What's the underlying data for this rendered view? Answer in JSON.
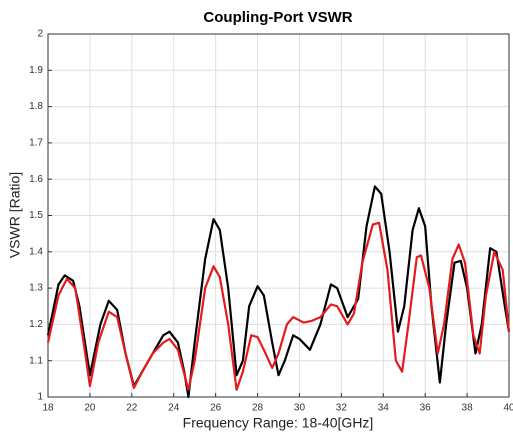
{
  "chart_data": {
    "type": "line",
    "title": "Coupling-Port VSWR",
    "xlabel": "Frequency Range: 18-40[GHz]",
    "ylabel": "VSWR [Ratio]",
    "xlim": [
      18,
      40
    ],
    "xticks": [
      18,
      20,
      22,
      24,
      26,
      28,
      30,
      32,
      34,
      36,
      38,
      40
    ],
    "ylim": [
      1,
      2
    ],
    "yticks": [
      1,
      1.1,
      1.2,
      1.3,
      1.4,
      1.5,
      1.6,
      1.7,
      1.8,
      1.9,
      2
    ],
    "grid": true,
    "series": [
      {
        "color": "#000000",
        "x": [
          18,
          18.5,
          18.8,
          19.2,
          19.5,
          20,
          20.5,
          20.9,
          21.3,
          21.7,
          22.1,
          22.5,
          23,
          23.5,
          23.8,
          24.2,
          24.5,
          24.7,
          25,
          25.5,
          25.9,
          26.2,
          26.6,
          27,
          27.3,
          27.6,
          28,
          28.3,
          28.7,
          29,
          29.3,
          29.7,
          30,
          30.5,
          31,
          31.5,
          31.8,
          32.3,
          32.8,
          33.2,
          33.6,
          33.9,
          34.3,
          34.7,
          35,
          35.4,
          35.7,
          36,
          36.3,
          36.7,
          37,
          37.4,
          37.7,
          38,
          38.4,
          38.7,
          39.1,
          39.4,
          39.8,
          40
        ],
        "values": [
          1.17,
          1.31,
          1.335,
          1.32,
          1.25,
          1.06,
          1.2,
          1.265,
          1.24,
          1.12,
          1.03,
          1.07,
          1.12,
          1.17,
          1.18,
          1.15,
          1.07,
          1.0,
          1.15,
          1.38,
          1.49,
          1.46,
          1.3,
          1.06,
          1.1,
          1.25,
          1.305,
          1.28,
          1.15,
          1.06,
          1.1,
          1.17,
          1.16,
          1.13,
          1.2,
          1.31,
          1.3,
          1.22,
          1.27,
          1.47,
          1.58,
          1.56,
          1.4,
          1.18,
          1.25,
          1.46,
          1.52,
          1.47,
          1.25,
          1.04,
          1.2,
          1.37,
          1.375,
          1.3,
          1.12,
          1.2,
          1.41,
          1.4,
          1.25,
          1.18
        ]
      },
      {
        "color": "#e41a1c",
        "x": [
          18,
          18.5,
          18.9,
          19.3,
          19.7,
          20,
          20.4,
          20.9,
          21.3,
          21.7,
          22.1,
          22.5,
          23,
          23.5,
          23.8,
          24.2,
          24.7,
          25,
          25.5,
          25.9,
          26.2,
          26.6,
          27,
          27.3,
          27.7,
          28,
          28.3,
          28.7,
          29,
          29.4,
          29.7,
          30.2,
          30.6,
          31,
          31.5,
          31.8,
          32.3,
          32.6,
          33,
          33.5,
          33.8,
          34.2,
          34.6,
          34.9,
          35.2,
          35.6,
          35.8,
          36.2,
          36.6,
          36.9,
          37.3,
          37.6,
          37.9,
          38.3,
          38.6,
          38.9,
          39.3,
          39.7,
          40
        ],
        "values": [
          1.15,
          1.28,
          1.325,
          1.3,
          1.15,
          1.03,
          1.15,
          1.235,
          1.22,
          1.12,
          1.025,
          1.07,
          1.12,
          1.15,
          1.16,
          1.13,
          1.02,
          1.1,
          1.3,
          1.36,
          1.33,
          1.2,
          1.02,
          1.07,
          1.17,
          1.165,
          1.13,
          1.08,
          1.12,
          1.2,
          1.22,
          1.205,
          1.21,
          1.22,
          1.255,
          1.25,
          1.2,
          1.23,
          1.37,
          1.475,
          1.48,
          1.35,
          1.1,
          1.07,
          1.2,
          1.385,
          1.39,
          1.3,
          1.12,
          1.2,
          1.38,
          1.42,
          1.37,
          1.17,
          1.12,
          1.28,
          1.4,
          1.35,
          1.18
        ]
      }
    ]
  }
}
